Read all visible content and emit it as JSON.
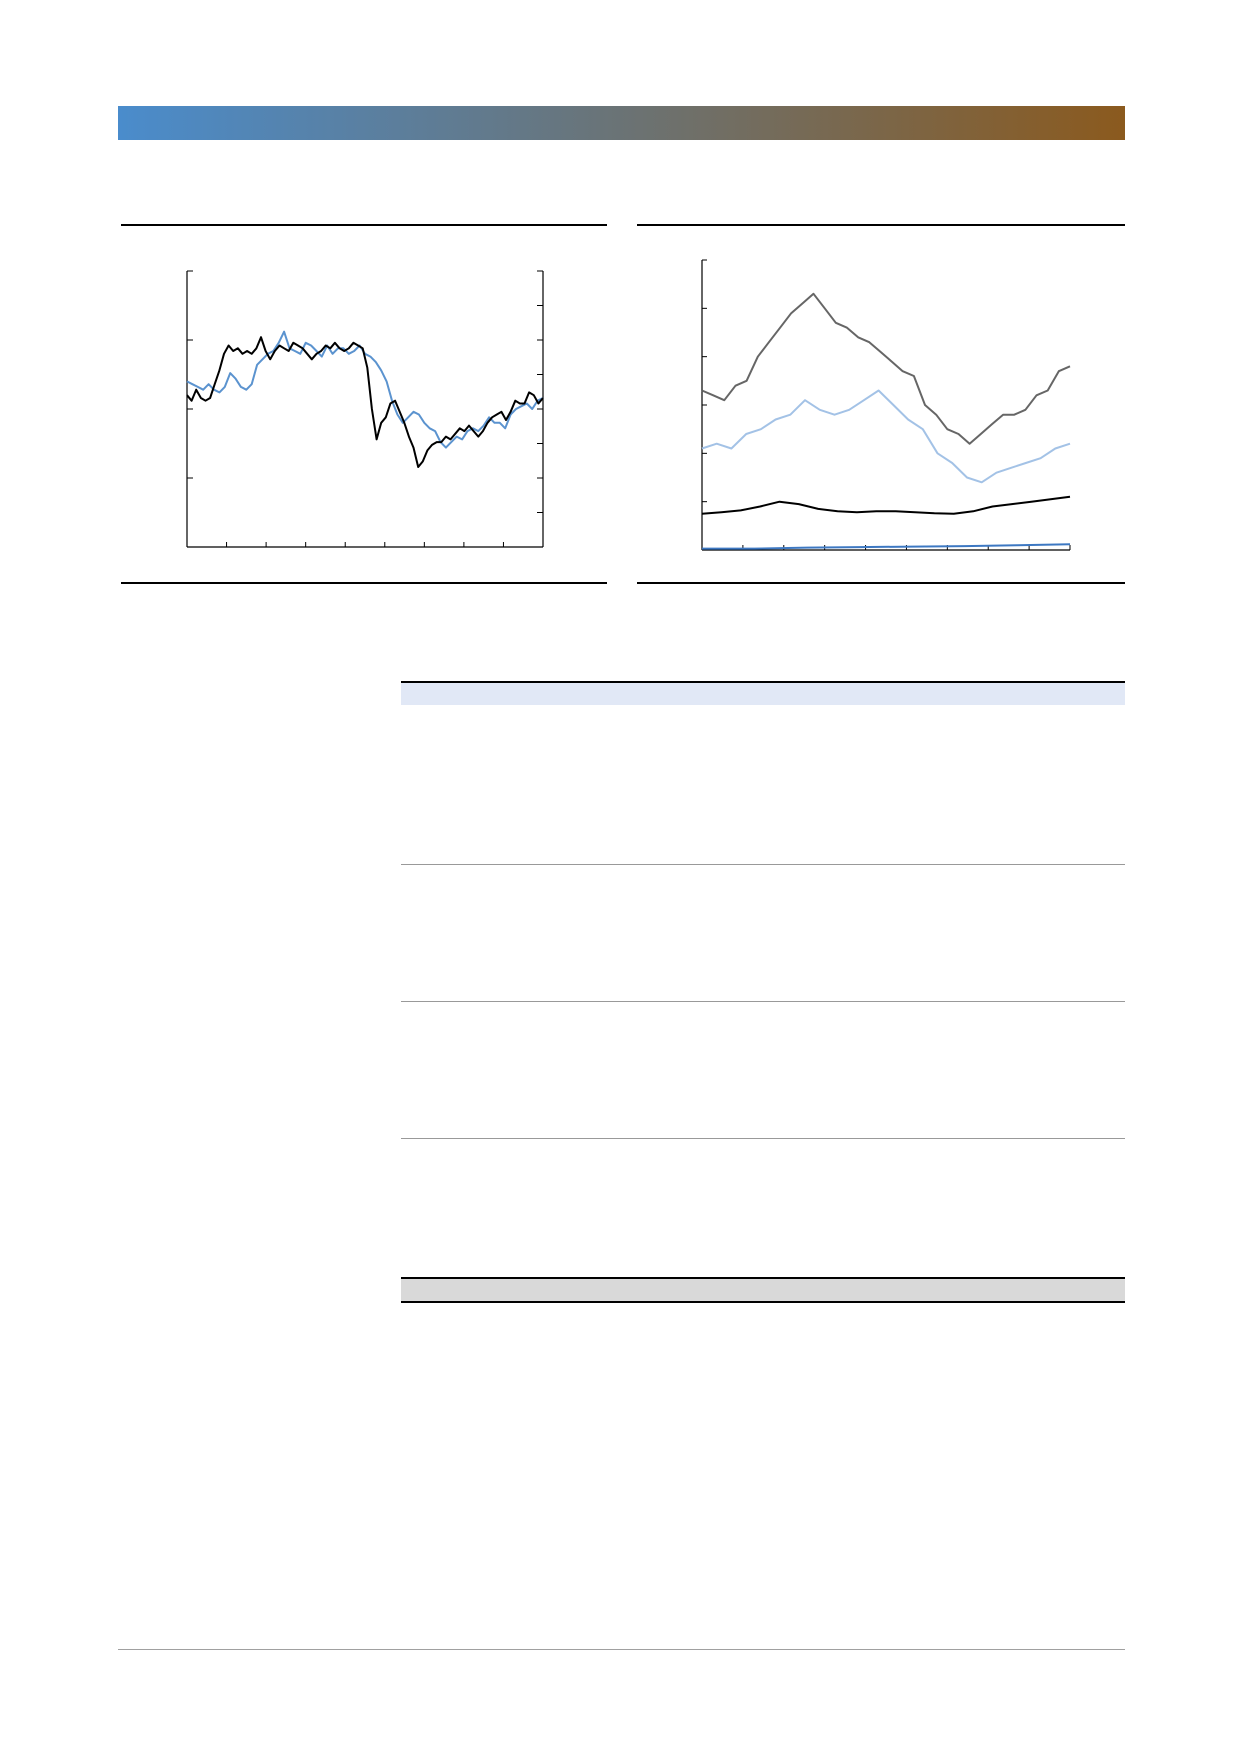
{
  "colors": {
    "banner_start": "#4a8ccc",
    "banner_end": "#8b5a1e",
    "table_header_bg": "#e1e8f6",
    "table_footer_bg": "#d9d9d9",
    "series_black": "#000000",
    "series_blue": "#5b93cf",
    "series_gray": "#666666",
    "series_lightblue": "#a3c2e6",
    "series_bottom": "#3d78c2"
  },
  "chart_data": [
    {
      "type": "line",
      "title": "",
      "xlabel": "",
      "ylabel": "",
      "y2label": "",
      "x_range": [
        0,
        140
      ],
      "ylim": [
        0,
        100
      ],
      "grid": false,
      "series": [
        {
          "color": "black",
          "axis": "left",
          "values": [
            55,
            53,
            57,
            54,
            53,
            54,
            59,
            64,
            70,
            73,
            71,
            72,
            70,
            71,
            70,
            72,
            76,
            71,
            68,
            71,
            73,
            72,
            71,
            74,
            73,
            72,
            70,
            68,
            70,
            71,
            73,
            72,
            74,
            72,
            71,
            72,
            74,
            73,
            72,
            65,
            50,
            39,
            45,
            47,
            52,
            53,
            49,
            45,
            40,
            36,
            29,
            31,
            35,
            37,
            38,
            38,
            40,
            39,
            41,
            43,
            42,
            44,
            42,
            40,
            42,
            45,
            47,
            48,
            49,
            46,
            49,
            53,
            52,
            52,
            56,
            55,
            52,
            54
          ]
        },
        {
          "color": "blue",
          "axis": "right",
          "values": [
            60,
            59,
            58,
            57,
            59,
            57,
            56,
            58,
            63,
            61,
            58,
            57,
            59,
            66,
            68,
            70,
            71,
            74,
            78,
            72,
            71,
            70,
            74,
            73,
            71,
            69,
            73,
            70,
            72,
            72,
            70,
            71,
            73,
            70,
            69,
            67,
            64,
            60,
            53,
            48,
            45,
            47,
            49,
            48,
            45,
            43,
            42,
            38,
            36,
            38,
            40,
            39,
            42,
            43,
            42,
            44,
            47,
            45,
            45,
            43,
            48,
            50,
            51,
            52,
            50,
            53,
            54
          ]
        }
      ]
    },
    {
      "type": "line",
      "title": "",
      "xlabel": "",
      "ylabel": "",
      "x_range": [
        0,
        100
      ],
      "ylim": [
        0,
        6
      ],
      "grid": false,
      "series": [
        {
          "color": "gray",
          "values": [
            3.3,
            3.2,
            3.1,
            3.4,
            3.5,
            4.0,
            4.3,
            4.6,
            4.9,
            5.1,
            5.3,
            5.0,
            4.7,
            4.6,
            4.4,
            4.3,
            4.1,
            3.9,
            3.7,
            3.6,
            3.0,
            2.8,
            2.5,
            2.4,
            2.2,
            2.4,
            2.6,
            2.8,
            2.8,
            2.9,
            3.2,
            3.3,
            3.7,
            3.8
          ]
        },
        {
          "color": "lightblue",
          "values": [
            2.1,
            2.2,
            2.1,
            2.4,
            2.5,
            2.7,
            2.8,
            3.1,
            2.9,
            2.8,
            2.9,
            3.1,
            3.3,
            3.0,
            2.7,
            2.5,
            2.0,
            1.8,
            1.5,
            1.4,
            1.6,
            1.7,
            1.8,
            1.9,
            2.1,
            2.2
          ]
        },
        {
          "color": "black",
          "values": [
            0.75,
            0.78,
            0.82,
            0.9,
            1.0,
            0.95,
            0.85,
            0.8,
            0.78,
            0.8,
            0.8,
            0.78,
            0.76,
            0.75,
            0.8,
            0.9,
            0.95,
            1.0,
            1.05,
            1.1
          ]
        },
        {
          "color": "bottom",
          "values": [
            0.03,
            0.03,
            0.05,
            0.06,
            0.07,
            0.08,
            0.1,
            0.12
          ]
        }
      ]
    }
  ]
}
